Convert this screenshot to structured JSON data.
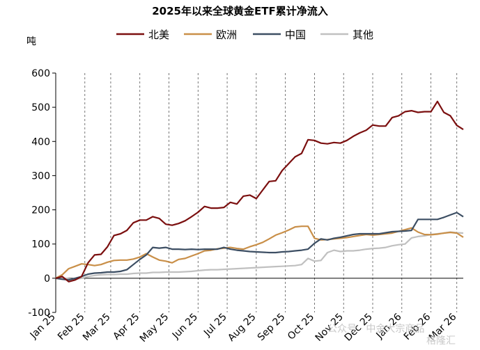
{
  "chart_data": {
    "type": "line",
    "title": "2025年以来全球黄金ETF累计净流入",
    "ylabel": "吨",
    "ylim": [
      -100,
      600
    ],
    "yticks": [
      -100,
      0,
      100,
      200,
      300,
      400,
      500,
      600
    ],
    "xlim": [
      0,
      63
    ],
    "xticks": [
      0,
      4.5,
      8.5,
      13,
      17.5,
      22,
      26.5,
      31,
      35.5,
      40,
      44.5,
      49,
      53.5,
      58,
      62
    ],
    "xtick_labels": [
      "Jan 25",
      "Feb 25",
      "Mar 25",
      "Apr 25",
      "May 25",
      "Jun 25",
      "Jul 25",
      "Aug 25",
      "Sep 25",
      "Oct 25",
      "Nov 25",
      "Dec 25",
      "Jan 26",
      "Feb 26",
      "Mar 26"
    ],
    "vgrid_dashed": true,
    "legend_position": "top",
    "series": [
      {
        "name": "北美",
        "color": "#7b0f0f",
        "values": [
          0,
          5,
          -10,
          -5,
          5,
          45,
          68,
          70,
          92,
          125,
          130,
          140,
          162,
          170,
          170,
          180,
          175,
          158,
          155,
          160,
          168,
          180,
          193,
          210,
          205,
          205,
          207,
          222,
          217,
          240,
          243,
          233,
          258,
          283,
          285,
          315,
          335,
          355,
          365,
          405,
          403,
          395,
          393,
          397,
          395,
          403,
          415,
          425,
          433,
          448,
          445,
          445,
          470,
          475,
          487,
          490,
          485,
          487,
          487,
          517,
          485,
          475,
          447,
          435
        ]
      },
      {
        "name": "欧洲",
        "color": "#c98f48",
        "values": [
          0,
          10,
          28,
          35,
          42,
          40,
          37,
          40,
          47,
          52,
          53,
          53,
          56,
          62,
          72,
          62,
          53,
          50,
          45,
          55,
          58,
          65,
          72,
          80,
          82,
          86,
          88,
          90,
          87,
          85,
          92,
          98,
          105,
          115,
          126,
          133,
          141,
          150,
          152,
          152,
          117,
          112,
          113,
          115,
          117,
          119,
          122,
          125,
          128,
          126,
          128,
          130,
          132,
          137,
          142,
          147,
          135,
          128,
          127,
          129,
          132,
          134,
          132,
          120
        ]
      },
      {
        "name": "中国",
        "color": "#3c4e63",
        "values": [
          0,
          -3,
          -5,
          0,
          5,
          12,
          15,
          16,
          18,
          18,
          20,
          25,
          40,
          55,
          68,
          90,
          88,
          90,
          85,
          85,
          84,
          85,
          84,
          85,
          85,
          85,
          90,
          85,
          82,
          80,
          78,
          77,
          76,
          75,
          75,
          77,
          78,
          80,
          82,
          85,
          102,
          115,
          112,
          117,
          120,
          124,
          128,
          130,
          130,
          130,
          130,
          133,
          136,
          137,
          138,
          140,
          172,
          172,
          172,
          172,
          178,
          185,
          192,
          180
        ]
      },
      {
        "name": "其他",
        "color": "#c0c0c0",
        "values": [
          0,
          0,
          -2,
          -3,
          0,
          5,
          8,
          10,
          11,
          11,
          12,
          12,
          14,
          15,
          15,
          17,
          17,
          18,
          18,
          18,
          19,
          20,
          22,
          24,
          25,
          25,
          26,
          27,
          28,
          29,
          30,
          31,
          32,
          33,
          34,
          35,
          36,
          37,
          40,
          58,
          50,
          52,
          75,
          82,
          78,
          80,
          80,
          82,
          85,
          87,
          88,
          90,
          95,
          98,
          100,
          118,
          122,
          124,
          128,
          130,
          132,
          135,
          133,
          132
        ]
      }
    ]
  },
  "watermark": {
    "text1": "公众号 · 中金大宗商品",
    "text2": "格隆汇"
  }
}
